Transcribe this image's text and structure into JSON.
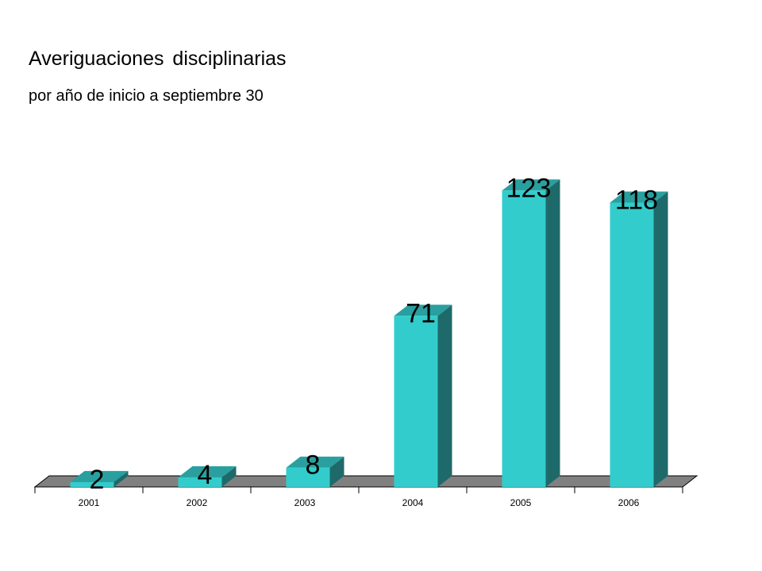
{
  "header": {
    "title": "Averiguaciones disciplinarias",
    "subtitle": "por año de inicio a septiembre 30"
  },
  "colors": {
    "bar_front": "#33cccc",
    "bar_top": "#2a9f9f",
    "bar_side": "#1e6a6a",
    "floor": "#808080"
  },
  "chart_data": {
    "type": "bar",
    "title": "Averiguaciones disciplinarias",
    "subtitle": "por año de inicio a septiembre 30",
    "categories": [
      "2001",
      "2002",
      "2003",
      "2004",
      "2005",
      "2006"
    ],
    "values": [
      2,
      4,
      8,
      71,
      123,
      118
    ],
    "data_labels": [
      "2",
      "4",
      "8",
      "71",
      "123",
      "118"
    ],
    "xlabel": "",
    "ylabel": "",
    "ylim": [
      0,
      130
    ],
    "grid": false,
    "legend": "none",
    "style": "3d-column"
  }
}
